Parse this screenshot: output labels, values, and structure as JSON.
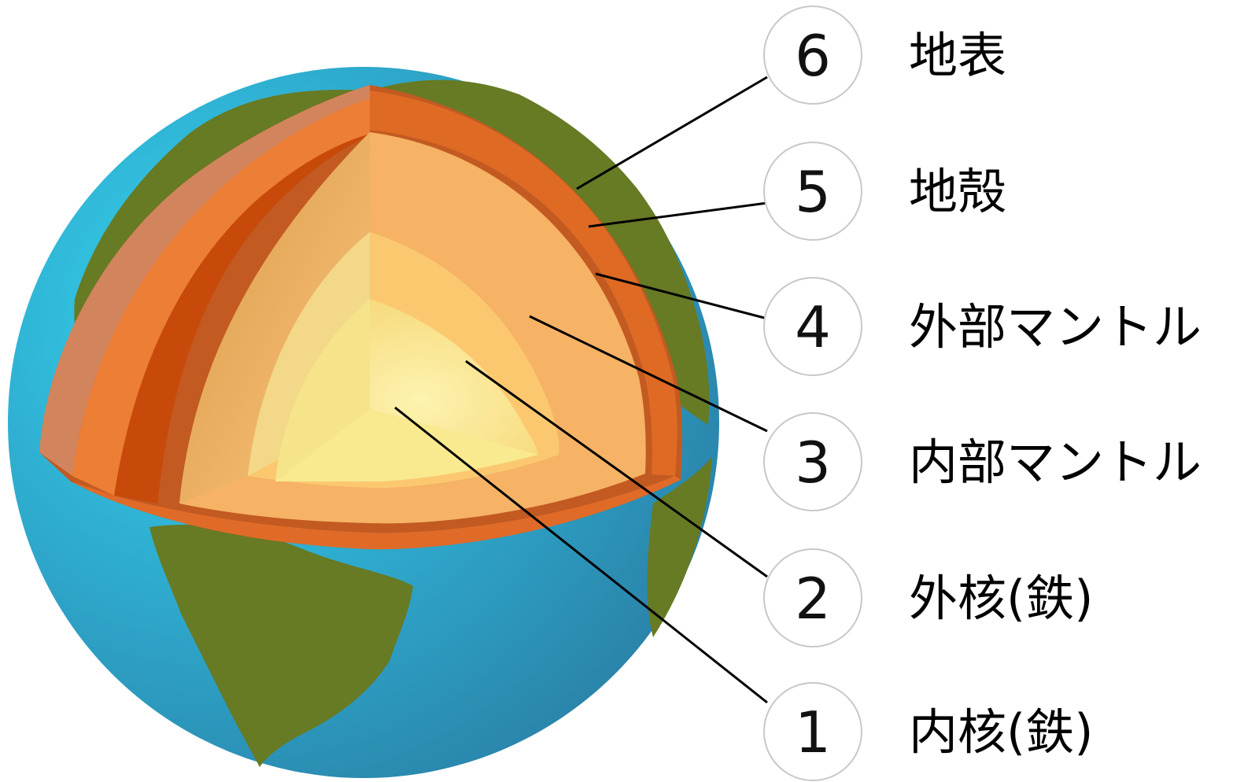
{
  "layers": [
    {
      "number": "6",
      "label": "地表"
    },
    {
      "number": "5",
      "label": "地殻"
    },
    {
      "number": "4",
      "label": "外部マントル"
    },
    {
      "number": "3",
      "label": "内部マントル"
    },
    {
      "number": "2",
      "label": "外核(鉄)"
    },
    {
      "number": "1",
      "label": "内核(鉄)"
    }
  ],
  "colors": {
    "ocean": "#2e9fc6",
    "land": "#677a24",
    "crust": "#d06a2a",
    "outer_mantle": "#ea7a34",
    "inner_mantle": "#f6a95a",
    "outer_core": "#fbc870",
    "inner_core": "#fbe98c"
  }
}
